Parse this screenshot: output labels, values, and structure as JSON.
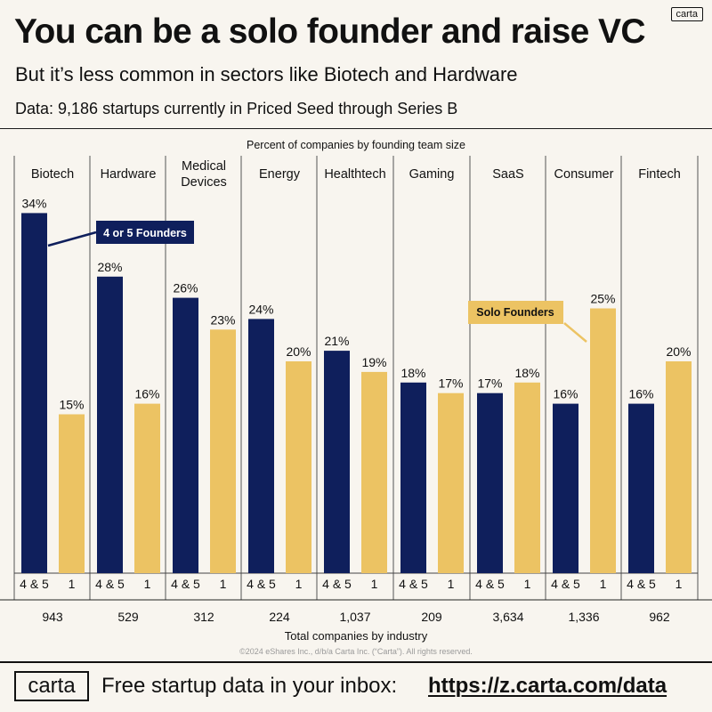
{
  "header": {
    "logo_text": "carta",
    "title": "You can be a solo founder and raise VC",
    "subtitle": "But it’s less common in sectors like Biotech and Hardware",
    "source_note": "Data: 9,186 startups currently in Priced Seed through Series B"
  },
  "colors": {
    "four_five_founders": "#0f1f5c",
    "solo_founders": "#ecc363",
    "background": "#f8f5ef",
    "ink": "#111111"
  },
  "chart_data": {
    "type": "bar",
    "title": "Percent of companies by founding team size",
    "xlabel": "Total companies by industry",
    "ylim": [
      0,
      40
    ],
    "value_suffix": "%",
    "categories": [
      "Biotech",
      "Hardware",
      "Medical Devices",
      "Energy",
      "Healthtech",
      "Gaming",
      "SaaS",
      "Consumer",
      "Fintech"
    ],
    "series": [
      {
        "name": "4 or 5 Founders",
        "tick_label": "4 & 5",
        "color": "#0f1f5c",
        "values": [
          34,
          28,
          26,
          24,
          21,
          18,
          17,
          16,
          16
        ]
      },
      {
        "name": "Solo Founders",
        "tick_label": "1",
        "color": "#ecc363",
        "values": [
          15,
          16,
          23,
          20,
          19,
          17,
          18,
          25,
          20
        ]
      }
    ],
    "totals": [
      "943",
      "529",
      "312",
      "224",
      "1,037",
      "209",
      "3,634",
      "1,336",
      "962"
    ],
    "annotations": [
      {
        "text": "4 or 5 Founders",
        "series": 0,
        "category": "Biotech"
      },
      {
        "text": "Solo Founders",
        "series": 1,
        "category": "Consumer"
      }
    ]
  },
  "copyright": "©2024 eShares Inc., d/b/a Carta Inc. (“Carta”). All rights reserved.",
  "footer": {
    "logo_text": "carta",
    "cta_text": "Free startup data in your inbox:",
    "link_text": "https://z.carta.com/data"
  }
}
